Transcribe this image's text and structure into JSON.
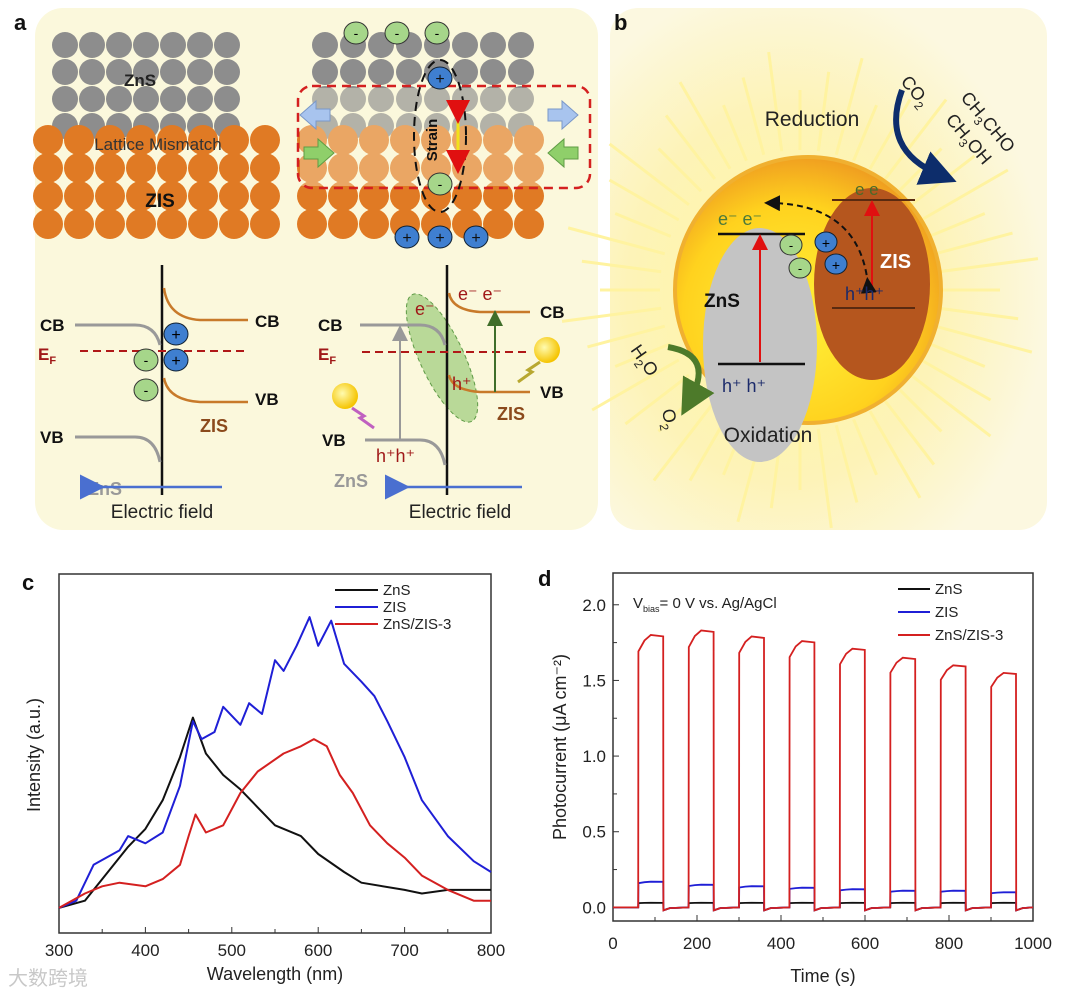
{
  "panels": {
    "a": {
      "label": "a",
      "left": {
        "top_layer": "ZnS",
        "interface": "Lattice Mismatch",
        "bottom_layer": "ZIS",
        "cb_left": "CB",
        "ef": "E",
        "ef_sub": "F",
        "vb_left": "VB",
        "cb_right": "CB",
        "vb_right": "VB",
        "zis": "ZIS",
        "zns": "ZnS",
        "plus": "+",
        "minus": "-",
        "field": "Electric field"
      },
      "right": {
        "strain": "Strain",
        "plus": "+",
        "minus": "-",
        "cb_left": "CB",
        "ef": "E",
        "ef_sub": "F",
        "vb_left": "VB",
        "cb_right": "CB",
        "vb_right": "VB",
        "electrons_top": "e⁻ e⁻",
        "electron_mid": "e⁻",
        "hole_mid": "h⁺",
        "holes_bottom": "h⁺h⁺",
        "zis": "ZIS",
        "zns": "ZnS",
        "field": "Electric field"
      }
    },
    "b": {
      "label": "b",
      "reduction": "Reduction",
      "oxidation": "Oxidation",
      "co2": "CO",
      "co2_sub": "2",
      "p1a": "CH",
      "p1_sub": "3",
      "p1b": "CHO",
      "p2a": "CH",
      "p2_sub": "3",
      "p2b": "OH",
      "h2o_a": "H",
      "h2o_sub": "2",
      "h2o_b": "O",
      "o2": "O",
      "o2_sub": "2",
      "zns": "ZnS",
      "zis": "ZIS",
      "zns_electrons": "e⁻ e⁻",
      "zns_holes": "h⁺ h⁺",
      "zis_electrons": "e e",
      "zis_holes": "h⁺h⁺",
      "plus": "+",
      "minus": "-"
    }
  },
  "watermark": "大数跨境",
  "colors": {
    "zns": "#000000",
    "zis": "#1f1fd6",
    "composite": "#d42020"
  },
  "chart_data": [
    {
      "panel": "c",
      "type": "line",
      "title": "",
      "xlabel": "Wavelength (nm)",
      "ylabel": "Intensity (a.u.)",
      "xlim": [
        300,
        800
      ],
      "ylim": [
        0,
        100
      ],
      "xticks": [
        300,
        400,
        500,
        600,
        700,
        800
      ],
      "legend": "top-right",
      "grid": false,
      "series": [
        {
          "name": "ZnS",
          "color": "#111111",
          "x": [
            300,
            330,
            350,
            380,
            400,
            420,
            440,
            455,
            470,
            490,
            510,
            530,
            550,
            580,
            600,
            630,
            650,
            700,
            720,
            750,
            800
          ],
          "y": [
            7,
            9,
            15,
            24,
            29,
            37,
            49,
            60,
            50,
            44,
            40,
            35,
            30,
            27,
            22,
            17,
            14,
            12,
            11,
            12,
            12
          ]
        },
        {
          "name": "ZIS",
          "color": "#1f1fd6",
          "x": [
            300,
            320,
            340,
            370,
            380,
            400,
            420,
            440,
            455,
            465,
            480,
            490,
            510,
            520,
            535,
            550,
            560,
            575,
            590,
            600,
            615,
            630,
            650,
            665,
            680,
            700,
            720,
            750,
            780,
            800
          ],
          "y": [
            7,
            9,
            19,
            23,
            27,
            25,
            28,
            41,
            59,
            54,
            56,
            63,
            58,
            64,
            61,
            76,
            73,
            80,
            88,
            80,
            87,
            75,
            70,
            66,
            59,
            49,
            37,
            27,
            20,
            17
          ]
        },
        {
          "name": "ZnS/ZIS-3",
          "color": "#d42020",
          "x": [
            300,
            330,
            350,
            370,
            400,
            420,
            440,
            450,
            458,
            470,
            490,
            510,
            530,
            560,
            580,
            595,
            610,
            625,
            640,
            660,
            680,
            700,
            720,
            750,
            780,
            800
          ],
          "y": [
            7,
            11,
            13,
            14,
            13,
            15,
            19,
            27,
            33,
            28,
            30,
            39,
            45,
            50,
            52,
            54,
            52,
            44,
            39,
            30,
            25,
            21,
            16,
            12,
            9,
            9
          ]
        }
      ]
    },
    {
      "panel": "d",
      "type": "line",
      "title": "",
      "annotation": {
        "prefix": "V",
        "sub": "bias",
        "suffix": "= 0 V vs. Ag/AgCl"
      },
      "xlabel": "Time (s)",
      "ylabel": "Photocurrent (μA cm⁻²)",
      "xlim": [
        0,
        1000
      ],
      "ylim": [
        -0.09,
        2.21
      ],
      "xticks": [
        0,
        200,
        400,
        600,
        800,
        1000
      ],
      "yticks": [
        0.0,
        0.5,
        1.0,
        1.5,
        2.0
      ],
      "legend": "top-right",
      "grid": false,
      "light_on_intervals": [
        [
          60,
          120
        ],
        [
          180,
          240
        ],
        [
          300,
          360
        ],
        [
          420,
          480
        ],
        [
          540,
          600
        ],
        [
          660,
          720
        ],
        [
          780,
          840
        ],
        [
          900,
          960
        ]
      ],
      "series": [
        {
          "name": "ZnS",
          "color": "#111111",
          "on_values": [
            0.03,
            0.03,
            0.03,
            0.03,
            0.03,
            0.03,
            0.03,
            0.03
          ],
          "off_value": 0.0
        },
        {
          "name": "ZIS",
          "color": "#1f1fd6",
          "on_values": [
            0.17,
            0.15,
            0.14,
            0.13,
            0.12,
            0.11,
            0.11,
            0.1
          ],
          "off_value": 0.0
        },
        {
          "name": "ZnS/ZIS-3",
          "color": "#d42020",
          "on_values": [
            1.8,
            1.83,
            1.79,
            1.76,
            1.71,
            1.65,
            1.6,
            1.55
          ],
          "off_value": 0.0
        }
      ]
    }
  ]
}
